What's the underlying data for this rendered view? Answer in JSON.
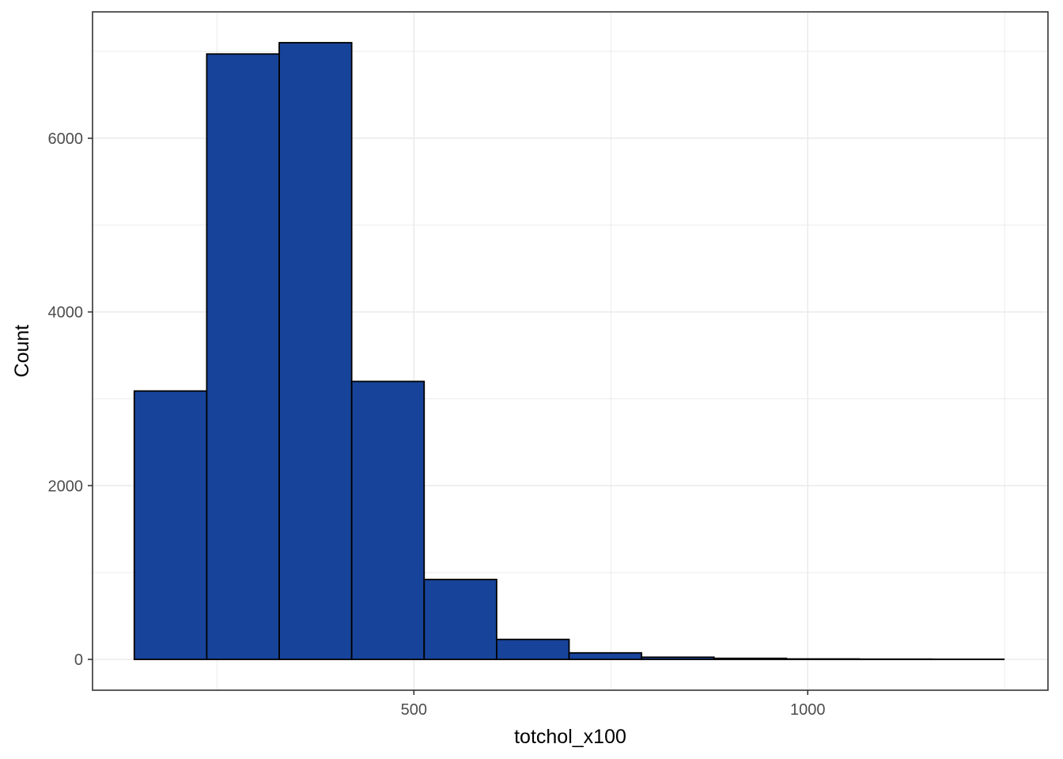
{
  "chart_data": {
    "type": "bar",
    "histogram": true,
    "title": "",
    "xlabel": "totchol_x100",
    "ylabel": "Count",
    "bins": [
      {
        "x0": 145,
        "x1": 237,
        "count": 3090
      },
      {
        "x0": 237,
        "x1": 329,
        "count": 6970
      },
      {
        "x0": 329,
        "x1": 421,
        "count": 7100
      },
      {
        "x0": 421,
        "x1": 513,
        "count": 3200
      },
      {
        "x0": 513,
        "x1": 605,
        "count": 920
      },
      {
        "x0": 605,
        "x1": 697,
        "count": 230
      },
      {
        "x0": 697,
        "x1": 789,
        "count": 75
      },
      {
        "x0": 789,
        "x1": 881,
        "count": 25
      },
      {
        "x0": 881,
        "x1": 973,
        "count": 12
      },
      {
        "x0": 973,
        "x1": 1065,
        "count": 5
      },
      {
        "x0": 1065,
        "x1": 1157,
        "count": 3
      },
      {
        "x0": 1157,
        "x1": 1249,
        "count": 2
      }
    ],
    "xticks": [
      500,
      1000
    ],
    "xtick_labels": [
      "500",
      "1000"
    ],
    "yticks": [
      0,
      2000,
      4000,
      6000
    ],
    "ytick_labels": [
      "0",
      "2000",
      "4000",
      "6000"
    ],
    "xlim": [
      92,
      1305
    ],
    "ylim": [
      -355,
      7455
    ],
    "grid": true,
    "colors": {
      "bar_fill": "#17449A",
      "bar_stroke": "#000000",
      "grid": "#EBEBEB",
      "panel_border": "#333333"
    }
  }
}
